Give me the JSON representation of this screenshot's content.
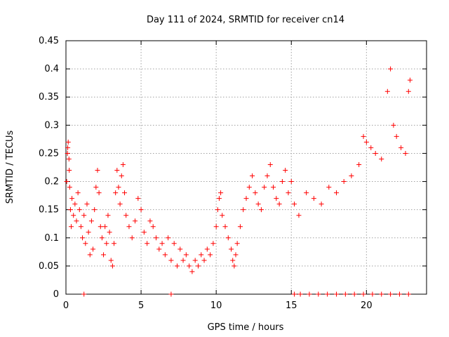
{
  "chart_data": {
    "type": "scatter",
    "title": "Day 111 of 2024, SRMTID for receiver cn14",
    "xlabel": "GPS time / hours",
    "ylabel": "SRMTID / TECUs",
    "xlim": [
      0,
      24
    ],
    "ylim": [
      0,
      0.45
    ],
    "grid": true,
    "xticks": [
      0,
      5,
      10,
      15,
      20
    ],
    "xtick_labels": [
      "0",
      "5",
      "10",
      "15",
      "20"
    ],
    "yticks": [
      0,
      0.05,
      0.1,
      0.15,
      0.2,
      0.25,
      0.3,
      0.35,
      0.4,
      0.45
    ],
    "ytick_labels": [
      "0",
      "0.05",
      "0.1",
      "0.15",
      "0.2",
      "0.25",
      "0.3",
      "0.35",
      "0.4",
      "0.45"
    ],
    "marker": "+",
    "color": "#ff0000",
    "series": [
      {
        "name": "SRMTID",
        "points": [
          [
            0.05,
            0.2
          ],
          [
            0.1,
            0.25
          ],
          [
            0.12,
            0.26
          ],
          [
            0.15,
            0.27
          ],
          [
            0.2,
            0.24
          ],
          [
            0.22,
            0.22
          ],
          [
            0.25,
            0.19
          ],
          [
            0.3,
            0.15
          ],
          [
            0.35,
            0.12
          ],
          [
            0.4,
            0.17
          ],
          [
            0.5,
            0.14
          ],
          [
            0.6,
            0.16
          ],
          [
            0.7,
            0.13
          ],
          [
            0.8,
            0.18
          ],
          [
            0.9,
            0.15
          ],
          [
            1.0,
            0.12
          ],
          [
            1.1,
            0.1
          ],
          [
            1.2,
            0.14
          ],
          [
            1.3,
            0.09
          ],
          [
            1.4,
            0.16
          ],
          [
            1.5,
            0.11
          ],
          [
            1.6,
            0.07
          ],
          [
            1.7,
            0.13
          ],
          [
            1.8,
            0.08
          ],
          [
            1.9,
            0.15
          ],
          [
            2.0,
            0.19
          ],
          [
            2.1,
            0.22
          ],
          [
            2.2,
            0.18
          ],
          [
            2.3,
            0.12
          ],
          [
            2.4,
            0.1
          ],
          [
            2.5,
            0.07
          ],
          [
            2.6,
            0.12
          ],
          [
            2.7,
            0.09
          ],
          [
            2.8,
            0.14
          ],
          [
            2.9,
            0.11
          ],
          [
            3.0,
            0.06
          ],
          [
            3.1,
            0.05
          ],
          [
            3.2,
            0.09
          ],
          [
            3.3,
            0.18
          ],
          [
            3.4,
            0.22
          ],
          [
            3.5,
            0.19
          ],
          [
            3.6,
            0.16
          ],
          [
            3.7,
            0.21
          ],
          [
            3.8,
            0.23
          ],
          [
            3.9,
            0.18
          ],
          [
            4.0,
            0.14
          ],
          [
            4.2,
            0.12
          ],
          [
            4.4,
            0.1
          ],
          [
            4.6,
            0.13
          ],
          [
            4.8,
            0.17
          ],
          [
            5.0,
            0.15
          ],
          [
            5.2,
            0.11
          ],
          [
            5.4,
            0.09
          ],
          [
            5.6,
            0.13
          ],
          [
            5.8,
            0.12
          ],
          [
            6.0,
            0.1
          ],
          [
            6.2,
            0.08
          ],
          [
            6.4,
            0.09
          ],
          [
            6.6,
            0.07
          ],
          [
            6.8,
            0.1
          ],
          [
            7.0,
            0.06
          ],
          [
            7.2,
            0.09
          ],
          [
            7.4,
            0.05
          ],
          [
            7.6,
            0.08
          ],
          [
            7.8,
            0.06
          ],
          [
            8.0,
            0.07
          ],
          [
            8.2,
            0.05
          ],
          [
            8.4,
            0.04
          ],
          [
            8.6,
            0.06
          ],
          [
            8.8,
            0.05
          ],
          [
            9.0,
            0.07
          ],
          [
            9.2,
            0.06
          ],
          [
            9.4,
            0.08
          ],
          [
            9.6,
            0.07
          ],
          [
            9.8,
            0.09
          ],
          [
            10.0,
            0.12
          ],
          [
            10.1,
            0.15
          ],
          [
            10.2,
            0.17
          ],
          [
            10.3,
            0.18
          ],
          [
            10.4,
            0.14
          ],
          [
            10.6,
            0.12
          ],
          [
            10.8,
            0.1
          ],
          [
            11.0,
            0.08
          ],
          [
            11.1,
            0.06
          ],
          [
            11.2,
            0.05
          ],
          [
            11.3,
            0.07
          ],
          [
            11.4,
            0.09
          ],
          [
            11.6,
            0.12
          ],
          [
            11.8,
            0.15
          ],
          [
            12.0,
            0.17
          ],
          [
            12.2,
            0.19
          ],
          [
            12.4,
            0.21
          ],
          [
            12.6,
            0.18
          ],
          [
            12.8,
            0.16
          ],
          [
            13.0,
            0.15
          ],
          [
            13.2,
            0.19
          ],
          [
            13.4,
            0.21
          ],
          [
            13.6,
            0.23
          ],
          [
            13.8,
            0.19
          ],
          [
            14.0,
            0.17
          ],
          [
            14.2,
            0.16
          ],
          [
            14.4,
            0.2
          ],
          [
            14.6,
            0.22
          ],
          [
            14.8,
            0.18
          ],
          [
            15.0,
            0.2
          ],
          [
            15.2,
            0.16
          ],
          [
            15.5,
            0.14
          ],
          [
            16.0,
            0.18
          ],
          [
            16.5,
            0.17
          ],
          [
            17.0,
            0.16
          ],
          [
            17.5,
            0.19
          ],
          [
            18.0,
            0.18
          ],
          [
            18.5,
            0.2
          ],
          [
            19.0,
            0.21
          ],
          [
            19.5,
            0.23
          ],
          [
            19.8,
            0.28
          ],
          [
            20.0,
            0.27
          ],
          [
            20.3,
            0.26
          ],
          [
            20.6,
            0.25
          ],
          [
            21.0,
            0.24
          ],
          [
            21.4,
            0.36
          ],
          [
            21.6,
            0.4
          ],
          [
            21.8,
            0.3
          ],
          [
            22.0,
            0.28
          ],
          [
            22.3,
            0.26
          ],
          [
            22.6,
            0.25
          ],
          [
            22.8,
            0.36
          ],
          [
            22.9,
            0.38
          ],
          [
            1.2,
            0
          ],
          [
            7.0,
            0
          ],
          [
            15.2,
            0
          ],
          [
            15.6,
            0
          ],
          [
            16.2,
            0
          ],
          [
            16.8,
            0
          ],
          [
            17.4,
            0
          ],
          [
            18.0,
            0
          ],
          [
            18.6,
            0
          ],
          [
            19.2,
            0
          ],
          [
            19.8,
            0
          ],
          [
            20.4,
            0
          ],
          [
            21.0,
            0
          ],
          [
            21.6,
            0
          ],
          [
            22.2,
            0
          ],
          [
            22.8,
            0
          ]
        ]
      }
    ]
  }
}
